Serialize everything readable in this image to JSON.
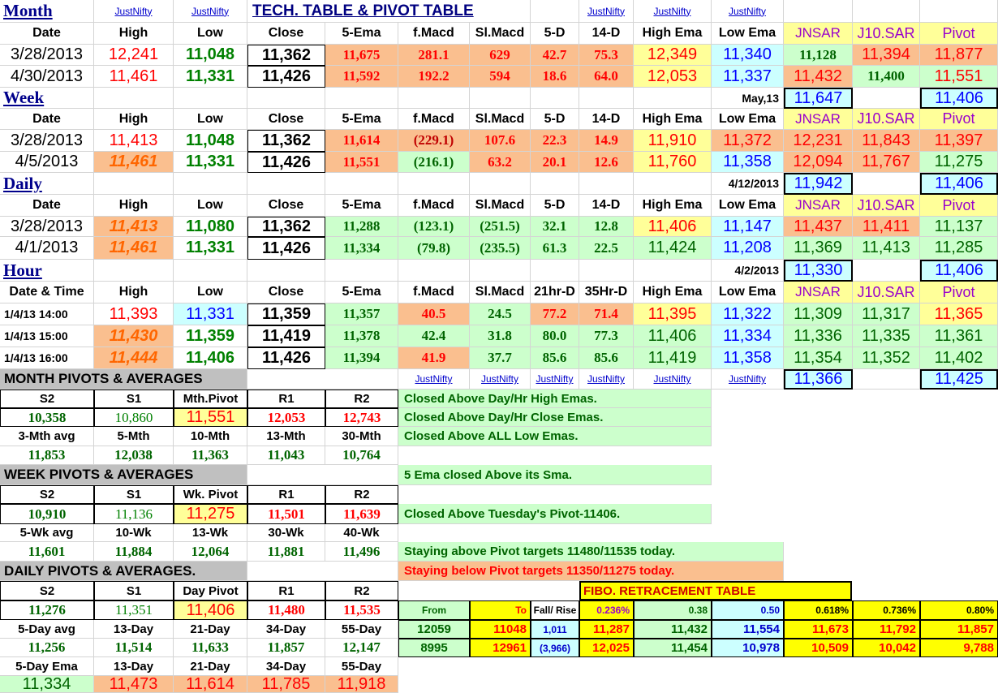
{
  "header": {
    "section": "Month",
    "title": "TECH. TABLE  &  PIVOT TABLE",
    "justnifty": "JustNifty"
  },
  "columns": {
    "date": "Date",
    "high": "High",
    "low": "Low",
    "close": "Close",
    "ema5": "5-Ema",
    "fmacd": "f.Macd",
    "slmacd": "Sl.Macd",
    "d5": "5-D",
    "d14": "14-D",
    "highema": "High Ema",
    "lowema": "Low Ema",
    "jnsar": "JNSAR",
    "j10sar": "J10.SAR",
    "pivot": "Pivot",
    "datetime": "Date & Time",
    "hr21": "21hr-D",
    "hr35": "35Hr-D"
  },
  "month": {
    "rows": [
      [
        "3/28/2013",
        "12,241",
        "11,048",
        "11,362",
        "11,675",
        "281.1",
        "629",
        "42.7",
        "75.3",
        "12,349",
        "11,340",
        "11,128",
        "11,394",
        "11,877"
      ],
      [
        "4/30/2013",
        "11,461",
        "11,331",
        "11,426",
        "11,592",
        "192.2",
        "594",
        "18.6",
        "64.0",
        "12,053",
        "11,337",
        "11,432",
        "11,400",
        "11,551"
      ]
    ]
  },
  "week": {
    "label": "Week",
    "period": "May,13",
    "jnsar_box": "11,647",
    "pivot_box": "11,406",
    "rows": [
      [
        "3/28/2013",
        "11,413",
        "11,048",
        "11,362",
        "11,614",
        "(229.1)",
        "107.6",
        "22.3",
        "14.9",
        "11,910",
        "11,372",
        "12,231",
        "11,843",
        "11,397"
      ],
      [
        "4/5/2013",
        "11,461",
        "11,331",
        "11,426",
        "11,551",
        "(216.1)",
        "63.2",
        "20.1",
        "12.6",
        "11,760",
        "11,358",
        "12,094",
        "11,767",
        "11,275"
      ]
    ]
  },
  "daily": {
    "label": "Daily",
    "period": "4/12/2013",
    "jnsar_box": "11,942",
    "pivot_box": "11,406",
    "rows": [
      [
        "3/28/2013",
        "11,413",
        "11,080",
        "11,362",
        "11,288",
        "(123.1)",
        "(251.5)",
        "32.1",
        "12.8",
        "11,406",
        "11,147",
        "11,437",
        "11,411",
        "11,137"
      ],
      [
        "4/1/2013",
        "11,461",
        "11,331",
        "11,426",
        "11,334",
        "(79.8)",
        "(235.5)",
        "61.3",
        "22.5",
        "11,424",
        "11,208",
        "11,369",
        "11,413",
        "11,285"
      ]
    ]
  },
  "hour": {
    "label": "Hour",
    "period": "4/2/2013",
    "jnsar_box": "11,330",
    "pivot_box": "11,406",
    "jnsar_box2": "11,366",
    "pivot_box2": "11,425",
    "rows": [
      [
        "1/4/13 14:00",
        "11,393",
        "11,331",
        "11,359",
        "11,357",
        "40.5",
        "24.5",
        "77.2",
        "71.4",
        "11,395",
        "11,322",
        "11,309",
        "11,317",
        "11,365"
      ],
      [
        "1/4/13 15:00",
        "11,430",
        "11,359",
        "11,419",
        "11,378",
        "42.4",
        "31.8",
        "80.0",
        "77.3",
        "11,406",
        "11,334",
        "11,336",
        "11,335",
        "11,361"
      ],
      [
        "1/4/13 16:00",
        "11,444",
        "11,406",
        "11,426",
        "11,394",
        "41.9",
        "37.7",
        "85.6",
        "85.6",
        "11,419",
        "11,358",
        "11,354",
        "11,352",
        "11,402"
      ]
    ]
  },
  "month_pivots": {
    "title": "MONTH  PIVOTS  &  AVERAGES",
    "hdr": [
      "S2",
      "S1",
      "Mth.Pivot",
      "R1",
      "R2"
    ],
    "vals": [
      "10,358",
      "10,860",
      "11,551",
      "12,053",
      "12,743"
    ],
    "avg_hdr": [
      "3-Mth avg",
      "5-Mth",
      "10-Mth",
      "13-Mth",
      "30-Mth"
    ],
    "avg_vals": [
      "11,853",
      "12,038",
      "11,363",
      "11,043",
      "10,764"
    ]
  },
  "week_pivots": {
    "title": "WEEK  PIVOTS  &  AVERAGES",
    "hdr": [
      "S2",
      "S1",
      "Wk. Pivot",
      "R1",
      "R2"
    ],
    "vals": [
      "10,910",
      "11,136",
      "11,275",
      "11,501",
      "11,639"
    ],
    "avg_hdr": [
      "5-Wk avg",
      "10-Wk",
      "13-Wk",
      "30-Wk",
      "40-Wk"
    ],
    "avg_vals": [
      "11,601",
      "11,884",
      "12,064",
      "11,881",
      "11,496"
    ]
  },
  "daily_pivots": {
    "title": "DAILY  PIVOTS  &  AVERAGES.",
    "hdr": [
      "S2",
      "S1",
      "Day  Pivot",
      "R1",
      "R2"
    ],
    "vals": [
      "11,276",
      "11,351",
      "11,406",
      "11,480",
      "11,535"
    ],
    "avg_hdr": [
      "5-Day avg",
      "13-Day",
      "21-Day",
      "34-Day",
      "55-Day"
    ],
    "avg_vals": [
      "11,256",
      "11,514",
      "11,633",
      "11,857",
      "12,147"
    ],
    "ema_hdr": [
      "5-Day Ema",
      "13-Day",
      "21-Day",
      "34-Day",
      "55-Day"
    ],
    "ema_vals": [
      "11,334",
      "11,473",
      "11,614",
      "11,785",
      "11,918"
    ]
  },
  "notes": [
    "Closed Above Day/Hr High Emas.",
    "Closed Above Day/Hr Close Emas.",
    "Closed Above ALL Low Emas.",
    "5 Ema closed Above its Sma.",
    "Closed Above Tuesday's Pivot-11406.",
    "Staying above Pivot targets 11480/11535 today.",
    "Staying below Pivot targets 11350/11275 today."
  ],
  "fibo": {
    "title": "FIBO. RETRACEMENT TABLE",
    "hdr": [
      "From",
      "To",
      "Fall/ Rise",
      "0.236%",
      "0.38",
      "0.50",
      "0.618%",
      "0.736%",
      "0.80%"
    ],
    "rows": [
      [
        "12059",
        "11048",
        "1,011",
        "11,287",
        "11,432",
        "11,554",
        "11,673",
        "11,792",
        "11,857"
      ],
      [
        "8995",
        "12961",
        "(3,966)",
        "12,025",
        "11,454",
        "10,978",
        "10,509",
        "10,042",
        "9,788"
      ]
    ]
  },
  "colors": {
    "peach": "#fabf8f",
    "light_yellow": "#ffff99",
    "light_cyan": "#ccffff",
    "light_green": "#ccffcc",
    "grey": "#c0c0c0",
    "yellow": "#ffff00",
    "red": "#ff0000",
    "green": "#008000",
    "blue": "#0000ff",
    "navy": "#000080"
  }
}
